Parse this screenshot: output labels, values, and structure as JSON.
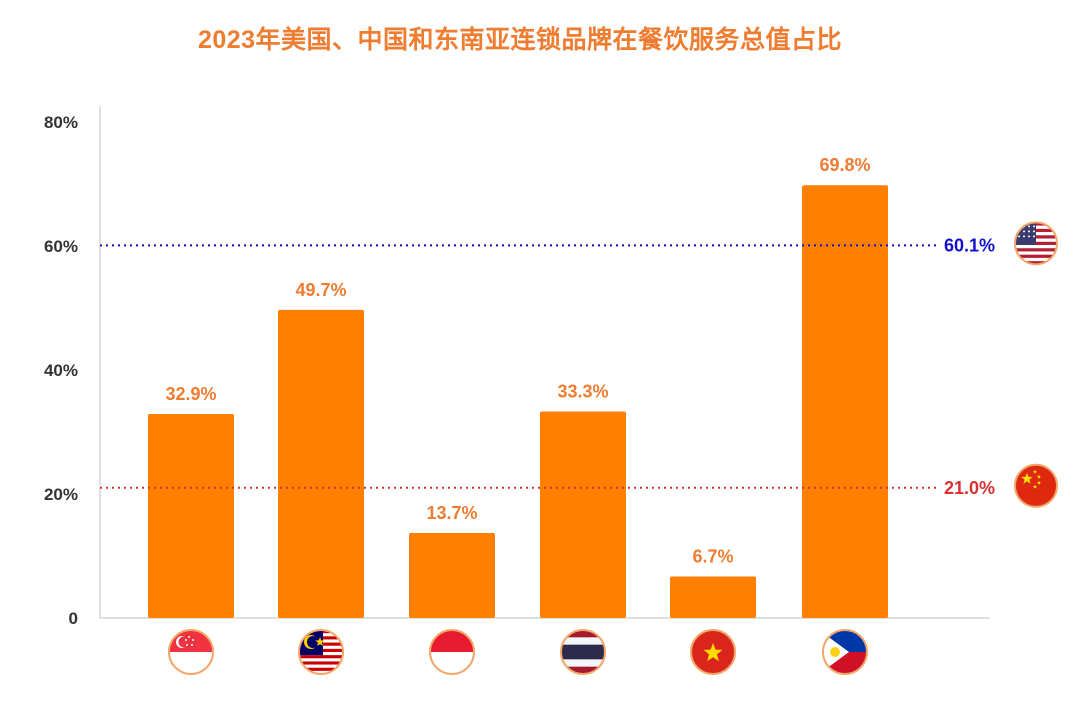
{
  "title": "2023年美国、中国和东南亚连锁品牌在餐饮服务总值占比",
  "colors": {
    "bar": "#ff7f00",
    "title": "#ee7d31",
    "us_line": "#1010cc",
    "cn_line": "#d93232",
    "axis": "#cccccc",
    "tick": "#333333"
  },
  "chart_data": {
    "type": "bar",
    "title": "2023年美国、中国和东南亚连锁品牌在餐饮服务总值占比",
    "categories": [
      "singapore-flag",
      "malaysia-flag",
      "indonesia-flag",
      "thailand-flag",
      "vietnam-flag",
      "philippines-flag"
    ],
    "values": [
      32.9,
      49.7,
      13.7,
      33.3,
      6.7,
      69.8
    ],
    "value_labels": [
      "32.9%",
      "49.7%",
      "13.7%",
      "33.3%",
      "6.7%",
      "69.8%"
    ],
    "ylim": [
      0,
      80
    ],
    "yticks": [
      0,
      20,
      40,
      60,
      80
    ],
    "ytick_labels": [
      "0",
      "20%",
      "40%",
      "60%",
      "80%"
    ],
    "reference_lines": [
      {
        "name": "us",
        "value": 60.1,
        "label": "60.1%",
        "flag": "usa-flag",
        "color": "#1010cc"
      },
      {
        "name": "cn",
        "value": 21.0,
        "label": "21.0%",
        "flag": "china-flag",
        "color": "#d93232"
      }
    ],
    "xlabel": "",
    "ylabel": ""
  }
}
